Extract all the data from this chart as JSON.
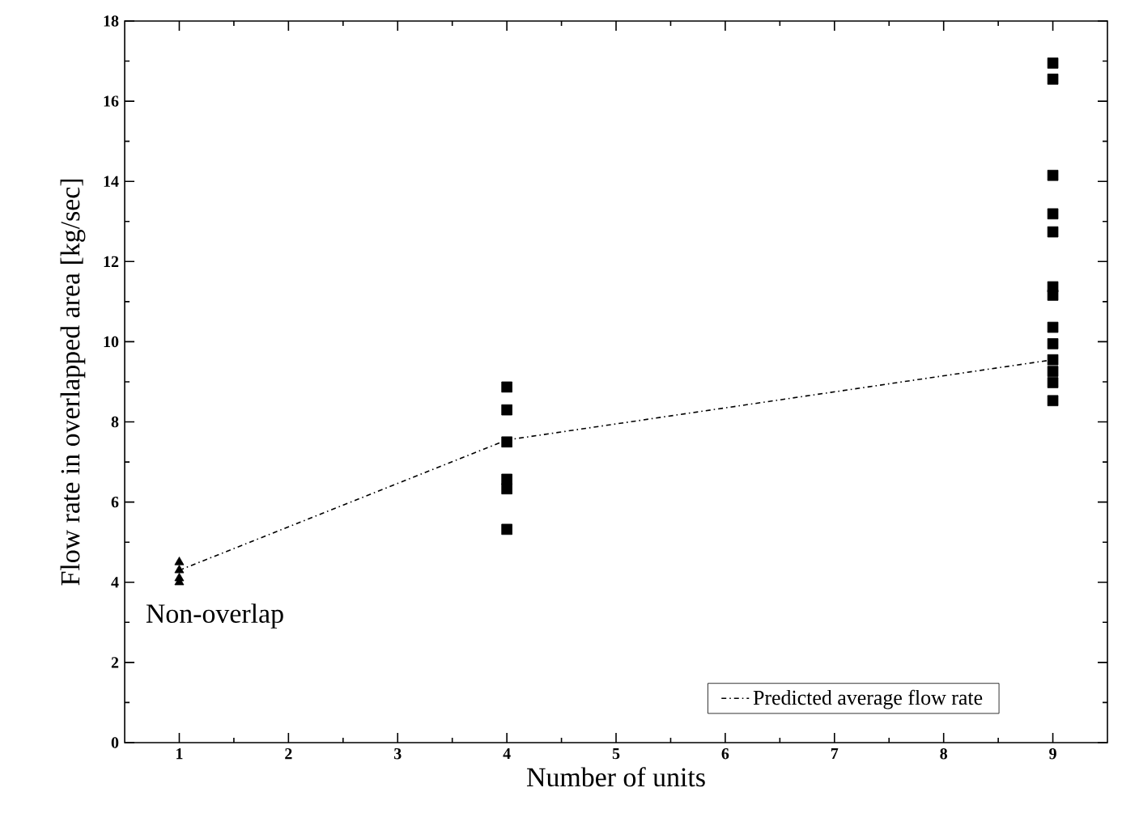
{
  "chart_data": {
    "type": "scatter",
    "xlabel": "Number of units",
    "ylabel": "Flow rate in overlapped area [kg/sec]",
    "xlim": [
      0.5,
      9.5
    ],
    "ylim": [
      0,
      18
    ],
    "xticks": [
      1,
      2,
      3,
      4,
      5,
      6,
      7,
      8,
      9
    ],
    "yticks": [
      0,
      2,
      4,
      6,
      8,
      10,
      12,
      14,
      16,
      18
    ],
    "grid": false,
    "legend": "bottom right",
    "annotations": [
      {
        "text": "Non-overlap",
        "x": 1,
        "y": 4
      }
    ],
    "series": [
      {
        "marker": "triangle",
        "color": "#000000",
        "x": [
          1,
          1,
          1,
          1
        ],
        "values": [
          4.5,
          4.3,
          4.1,
          4.0
        ]
      },
      {
        "marker": "square",
        "color": "#000000",
        "x": [
          4,
          4,
          4,
          4,
          4,
          4
        ],
        "values": [
          8.87,
          8.3,
          7.5,
          6.57,
          6.33,
          5.32
        ]
      },
      {
        "marker": "square",
        "color": "#000000",
        "x": [
          9,
          9,
          9,
          9,
          9,
          9,
          9,
          9,
          9,
          9,
          9,
          9,
          9
        ],
        "values": [
          16.95,
          16.55,
          14.15,
          13.19,
          12.74,
          11.37,
          11.16,
          10.36,
          9.95,
          9.55,
          9.26,
          8.98,
          8.53
        ]
      },
      {
        "type": "line",
        "name": "Predicted average flow rate",
        "marker": "none",
        "line_style": "dashed",
        "color": "#000000",
        "x": [
          1,
          4,
          9
        ],
        "values": [
          4.3,
          7.55,
          9.55
        ]
      }
    ]
  }
}
